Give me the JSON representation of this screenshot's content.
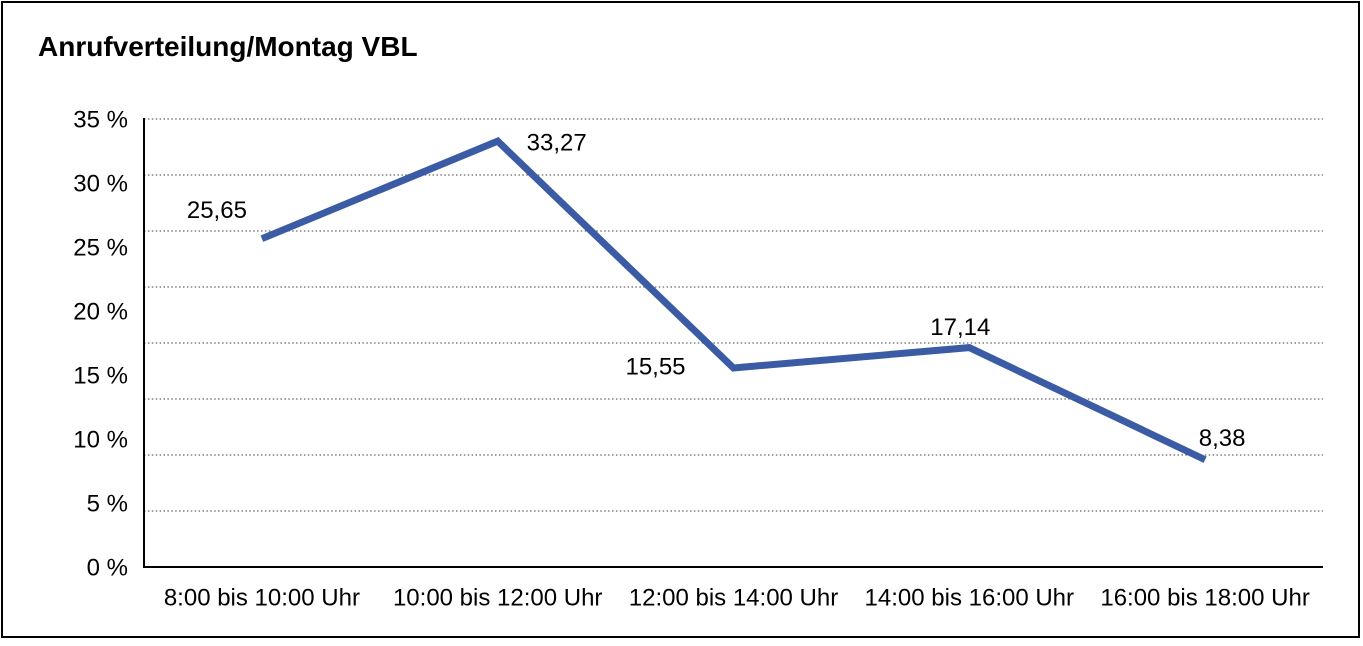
{
  "chart_data": {
    "type": "line",
    "title": "Anrufverteilung/Montag VBL",
    "categories": [
      "8:00 bis 10:00 Uhr",
      "10:00 bis 12:00 Uhr",
      "12:00 bis 14:00 Uhr",
      "14:00 bis 16:00 Uhr",
      "16:00 bis 18:00 Uhr"
    ],
    "values": [
      25.65,
      33.27,
      15.55,
      17.14,
      8.38
    ],
    "point_labels": [
      "25,65",
      "33,27",
      "15,55",
      "17,14",
      "8,38"
    ],
    "y_tick_labels": [
      "35 %",
      "30 %",
      "25 %",
      "20 %",
      "15 %",
      "10 %",
      "5 %",
      "0 %"
    ],
    "ylim": [
      0,
      35
    ],
    "xlabel": "",
    "ylabel": "",
    "legend": "none",
    "grid": "horizontal-dotted",
    "line_color": "#3B5CA5",
    "gridline_color": "#3d3d3d",
    "axis_color": "#000000",
    "background": "#FFFFFF"
  }
}
